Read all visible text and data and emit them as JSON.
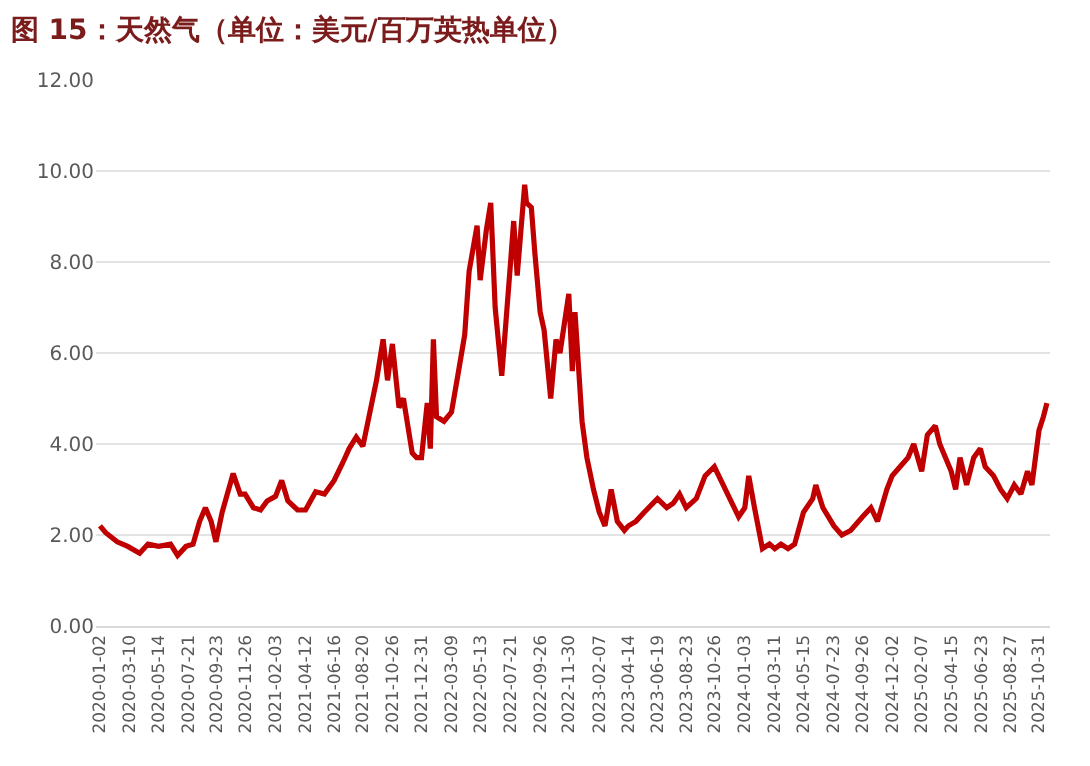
{
  "chart_data": {
    "type": "line",
    "title": "图 15：天然气（单位：美元/百万英热单位）",
    "x": [
      "2020-01-02",
      "2020-01-15",
      "2020-02-10",
      "2020-03-05",
      "2020-04-01",
      "2020-04-20",
      "2020-05-14",
      "2020-06-10",
      "2020-06-26",
      "2020-07-15",
      "2020-07-31",
      "2020-08-15",
      "2020-08-28",
      "2020-09-10",
      "2020-09-21",
      "2020-10-05",
      "2020-10-30",
      "2020-11-15",
      "2020-11-26",
      "2020-12-15",
      "2020-12-31",
      "2021-01-15",
      "2021-02-03",
      "2021-02-17",
      "2021-03-03",
      "2021-03-25",
      "2021-04-12",
      "2021-05-05",
      "2021-05-25",
      "2021-06-16",
      "2021-07-06",
      "2021-07-20",
      "2021-08-05",
      "2021-08-20",
      "2021-09-05",
      "2021-09-20",
      "2021-10-05",
      "2021-10-15",
      "2021-10-26",
      "2021-11-10",
      "2021-11-20",
      "2021-12-10",
      "2021-12-20",
      "2021-12-31",
      "2022-01-13",
      "2022-01-20",
      "2022-01-27",
      "2022-02-03",
      "2022-02-20",
      "2022-03-09",
      "2022-03-25",
      "2022-04-08",
      "2022-04-18",
      "2022-05-06",
      "2022-05-13",
      "2022-05-27",
      "2022-06-06",
      "2022-06-16",
      "2022-06-24",
      "2022-07-01",
      "2022-07-21",
      "2022-07-28",
      "2022-08-05",
      "2022-08-22",
      "2022-08-26",
      "2022-09-06",
      "2022-09-14",
      "2022-09-26",
      "2022-10-05",
      "2022-10-20",
      "2022-11-01",
      "2022-11-10",
      "2022-11-30",
      "2022-12-08",
      "2022-12-14",
      "2022-12-30",
      "2023-01-10",
      "2023-01-25",
      "2023-02-07",
      "2023-02-20",
      "2023-03-06",
      "2023-03-20",
      "2023-04-05",
      "2023-04-14",
      "2023-05-01",
      "2023-05-20",
      "2023-06-19",
      "2023-07-10",
      "2023-07-25",
      "2023-08-08",
      "2023-08-23",
      "2023-09-15",
      "2023-10-05",
      "2023-10-26",
      "2023-11-10",
      "2023-11-30",
      "2023-12-20",
      "2024-01-03",
      "2024-01-12",
      "2024-01-25",
      "2024-02-12",
      "2024-02-28",
      "2024-03-11",
      "2024-03-25",
      "2024-04-10",
      "2024-04-25",
      "2024-05-15",
      "2024-06-05",
      "2024-06-12",
      "2024-06-28",
      "2024-07-23",
      "2024-08-10",
      "2024-08-30",
      "2024-09-26",
      "2024-10-15",
      "2024-10-30",
      "2024-11-20",
      "2024-12-02",
      "2024-12-20",
      "2025-01-07",
      "2025-01-20",
      "2025-02-07",
      "2025-02-20",
      "2025-03-10",
      "2025-03-20",
      "2025-04-15",
      "2025-04-25",
      "2025-05-05",
      "2025-05-20",
      "2025-06-05",
      "2025-06-20",
      "2025-07-01",
      "2025-07-20",
      "2025-08-05",
      "2025-08-20",
      "2025-09-05",
      "2025-09-20",
      "2025-10-05",
      "2025-10-15",
      "2025-10-31",
      "2025-11-10",
      "2025-11-18"
    ],
    "series": [
      {
        "color": "#c00000",
        "values": [
          2.2,
          2.05,
          1.85,
          1.75,
          1.6,
          1.8,
          1.75,
          1.8,
          1.55,
          1.75,
          1.8,
          2.3,
          2.6,
          2.3,
          1.85,
          2.5,
          3.35,
          2.9,
          2.9,
          2.6,
          2.55,
          2.75,
          2.85,
          3.2,
          2.75,
          2.55,
          2.55,
          2.95,
          2.9,
          3.2,
          3.6,
          3.9,
          4.15,
          3.95,
          4.7,
          5.4,
          6.3,
          5.4,
          6.2,
          4.8,
          5.0,
          3.8,
          3.7,
          3.7,
          4.9,
          3.9,
          6.3,
          4.6,
          4.5,
          4.7,
          5.6,
          6.4,
          7.8,
          8.8,
          7.6,
          8.7,
          9.3,
          7.0,
          6.2,
          5.5,
          8.0,
          8.9,
          7.7,
          9.7,
          9.3,
          9.2,
          8.2,
          6.9,
          6.5,
          5.0,
          6.3,
          6.0,
          7.3,
          5.6,
          6.9,
          4.5,
          3.7,
          3.0,
          2.5,
          2.2,
          3.0,
          2.3,
          2.1,
          2.2,
          2.3,
          2.5,
          2.8,
          2.6,
          2.7,
          2.9,
          2.6,
          2.8,
          3.3,
          3.5,
          3.2,
          2.8,
          2.4,
          2.6,
          3.3,
          2.6,
          1.7,
          1.8,
          1.7,
          1.8,
          1.7,
          1.8,
          2.5,
          2.8,
          3.1,
          2.6,
          2.2,
          2.0,
          2.1,
          2.4,
          2.6,
          2.3,
          3.0,
          3.3,
          3.5,
          3.7,
          4.0,
          3.4,
          4.2,
          4.4,
          4.0,
          3.4,
          3.0,
          3.7,
          3.1,
          3.7,
          3.9,
          3.5,
          3.3,
          3.0,
          2.8,
          3.1,
          2.9,
          3.4,
          3.1,
          4.3,
          4.6,
          4.9
        ]
      }
    ],
    "xlim": [
      "2019-12-24",
      "2025-11-25"
    ],
    "xticks": [
      "2020-01-02",
      "2020-03-10",
      "2020-05-14",
      "2020-07-21",
      "2020-09-23",
      "2020-11-26",
      "2021-02-03",
      "2021-04-12",
      "2021-06-16",
      "2021-08-20",
      "2021-10-26",
      "2021-12-31",
      "2022-03-09",
      "2022-05-13",
      "2022-07-21",
      "2022-09-26",
      "2022-11-30",
      "2023-02-07",
      "2023-04-14",
      "2023-06-19",
      "2023-08-23",
      "2023-10-26",
      "2024-01-03",
      "2024-03-11",
      "2024-05-15",
      "2024-07-23",
      "2024-09-26",
      "2024-12-02",
      "2025-02-07",
      "2025-04-15",
      "2025-06-23",
      "2025-08-27",
      "2025-10-31"
    ],
    "ylim": [
      0,
      12
    ],
    "yticks": [
      {
        "value": 0,
        "label": "0.00"
      },
      {
        "value": 2,
        "label": "2.00"
      },
      {
        "value": 4,
        "label": "4.00"
      },
      {
        "value": 6,
        "label": "6.00"
      },
      {
        "value": 8,
        "label": "8.00"
      },
      {
        "value": 10,
        "label": "10.00"
      },
      {
        "value": 12,
        "label": "12.00"
      }
    ],
    "grid": "y",
    "marker": "none",
    "line_style": "solid"
  }
}
